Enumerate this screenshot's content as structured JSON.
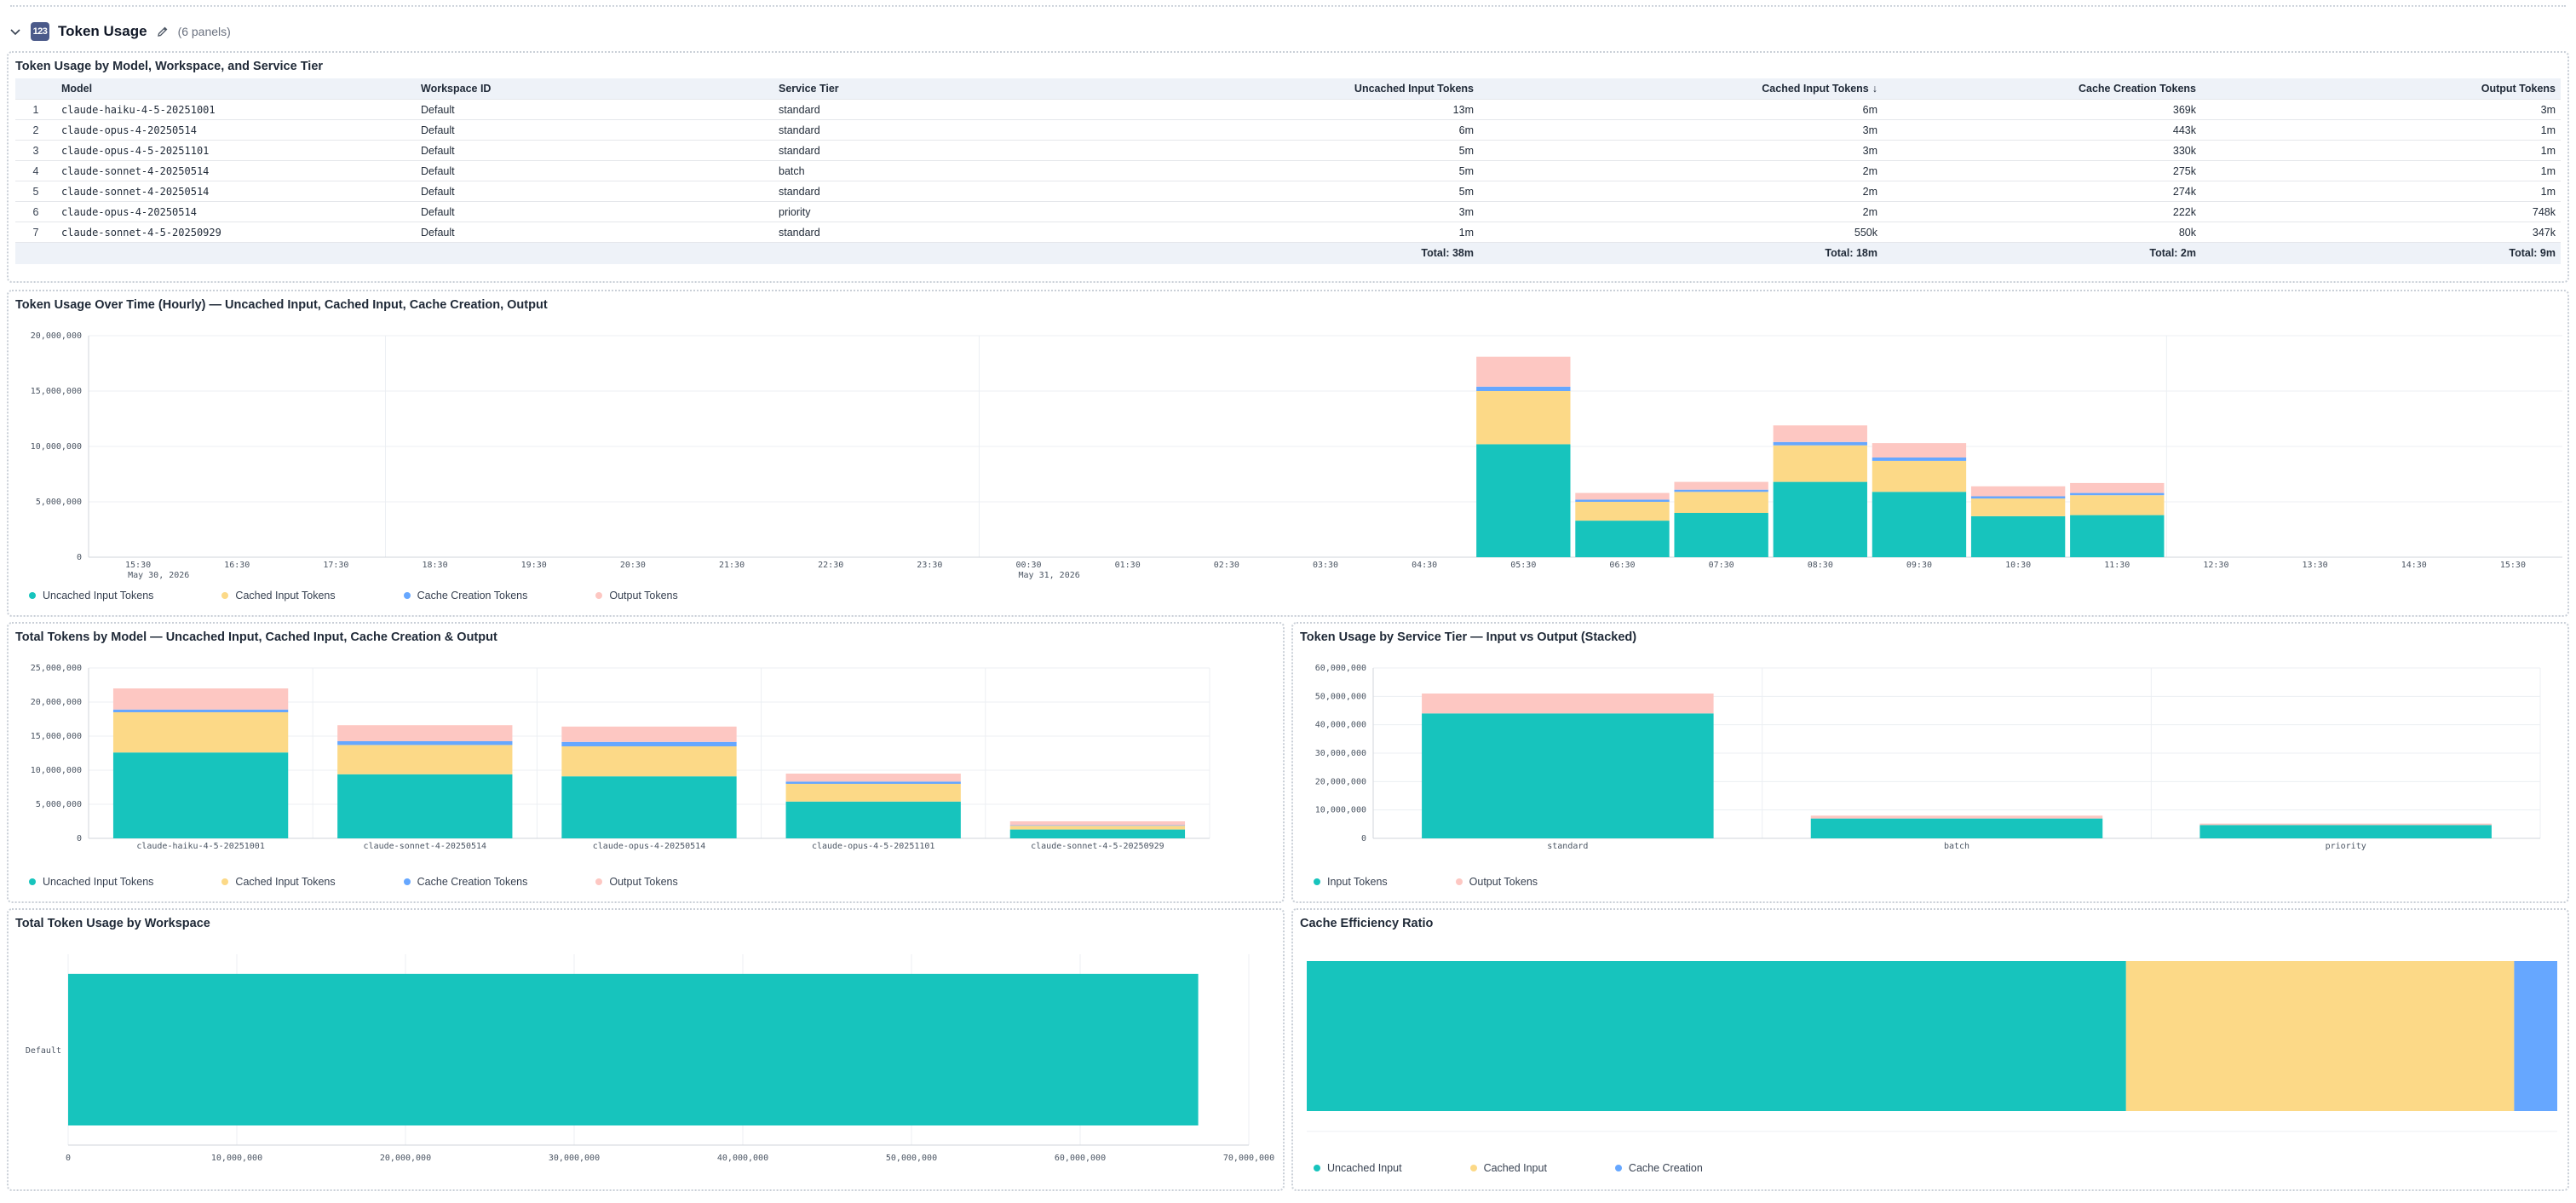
{
  "section": {
    "title": "Token Usage",
    "icon": "table-icon",
    "icon_glyph": "123",
    "panel_count": "(6 panels)"
  },
  "colors": {
    "uncached": "#17c4bd",
    "cached": "#fcd987",
    "cache_creation": "#66a7ff",
    "output": "#fdc7c2",
    "grid": "#eceff3",
    "axis_text": "#4b5563"
  },
  "table_panel": {
    "title": "Token Usage by Model, Workspace, and Service Tier",
    "headers": {
      "model": "Model",
      "workspace": "Workspace ID",
      "tier": "Service Tier",
      "uncached": "Uncached Input Tokens",
      "cached": "Cached Input Tokens",
      "cached_sort": "↓",
      "creation": "Cache Creation Tokens",
      "output": "Output Tokens"
    },
    "rows": [
      {
        "idx": "1",
        "model": "claude-haiku-4-5-20251001",
        "workspace": "Default",
        "tier": "standard",
        "uncached": "13m",
        "cached": "6m",
        "creation": "369k",
        "output": "3m"
      },
      {
        "idx": "2",
        "model": "claude-opus-4-20250514",
        "workspace": "Default",
        "tier": "standard",
        "uncached": "6m",
        "cached": "3m",
        "creation": "443k",
        "output": "1m"
      },
      {
        "idx": "3",
        "model": "claude-opus-4-5-20251101",
        "workspace": "Default",
        "tier": "standard",
        "uncached": "5m",
        "cached": "3m",
        "creation": "330k",
        "output": "1m"
      },
      {
        "idx": "4",
        "model": "claude-sonnet-4-20250514",
        "workspace": "Default",
        "tier": "batch",
        "uncached": "5m",
        "cached": "2m",
        "creation": "275k",
        "output": "1m"
      },
      {
        "idx": "5",
        "model": "claude-sonnet-4-20250514",
        "workspace": "Default",
        "tier": "standard",
        "uncached": "5m",
        "cached": "2m",
        "creation": "274k",
        "output": "1m"
      },
      {
        "idx": "6",
        "model": "claude-opus-4-20250514",
        "workspace": "Default",
        "tier": "priority",
        "uncached": "3m",
        "cached": "2m",
        "creation": "222k",
        "output": "748k"
      },
      {
        "idx": "7",
        "model": "claude-sonnet-4-5-20250929",
        "workspace": "Default",
        "tier": "standard",
        "uncached": "1m",
        "cached": "550k",
        "creation": "80k",
        "output": "347k"
      }
    ],
    "totals": {
      "uncached": "Total: 38m",
      "cached": "Total: 18m",
      "creation": "Total: 2m",
      "output": "Total: 9m"
    }
  },
  "chart_data": [
    {
      "id": "hourly",
      "type": "bar",
      "stacked": true,
      "title": "Token Usage Over Time (Hourly) — Uncached Input, Cached Input, Cache Creation, Output",
      "categories": [
        "15:30",
        "16:30",
        "17:30",
        "18:30",
        "19:30",
        "20:30",
        "21:30",
        "22:30",
        "23:30",
        "00:30",
        "01:30",
        "02:30",
        "03:30",
        "04:30",
        "05:30",
        "06:30",
        "07:30",
        "08:30",
        "09:30",
        "10:30",
        "11:30",
        "12:30",
        "13:30",
        "14:30",
        "15:30"
      ],
      "date_labels": [
        {
          "at": "15:30",
          "label": "May 30, 2026"
        },
        {
          "at": "00:30",
          "label": "May 31, 2026"
        }
      ],
      "series": [
        {
          "name": "Uncached Input Tokens",
          "color_key": "uncached",
          "values": [
            0,
            0,
            0,
            0,
            0,
            0,
            0,
            0,
            0,
            0,
            0,
            0,
            0,
            0,
            10200000,
            3300000,
            4000000,
            6800000,
            5900000,
            3700000,
            3800000,
            0,
            0,
            0,
            0
          ]
        },
        {
          "name": "Cached Input Tokens",
          "color_key": "cached",
          "values": [
            0,
            0,
            0,
            0,
            0,
            0,
            0,
            0,
            0,
            0,
            0,
            0,
            0,
            0,
            4800000,
            1700000,
            1900000,
            3300000,
            2800000,
            1600000,
            1800000,
            0,
            0,
            0,
            0
          ]
        },
        {
          "name": "Cache Creation Tokens",
          "color_key": "cache_creation",
          "values": [
            0,
            0,
            0,
            0,
            0,
            0,
            0,
            0,
            0,
            0,
            0,
            0,
            0,
            0,
            400000,
            200000,
            200000,
            300000,
            300000,
            200000,
            200000,
            0,
            0,
            0,
            0
          ]
        },
        {
          "name": "Output Tokens",
          "color_key": "output",
          "values": [
            0,
            0,
            0,
            0,
            0,
            0,
            0,
            0,
            0,
            0,
            0,
            0,
            0,
            0,
            2700000,
            600000,
            700000,
            1500000,
            1300000,
            900000,
            900000,
            0,
            0,
            0,
            0
          ]
        }
      ],
      "yticks": [
        0,
        5000000,
        10000000,
        15000000,
        20000000
      ],
      "ytick_labels": [
        "0",
        "5,000,000",
        "10,000,000",
        "15,000,000",
        "20,000,000"
      ],
      "ylim": [
        0,
        20000000
      ],
      "grid": true,
      "legend": "bottom-left"
    },
    {
      "id": "by_model",
      "type": "bar",
      "stacked": true,
      "title": "Total Tokens by Model — Uncached Input, Cached Input, Cache Creation & Output",
      "categories": [
        "claude-haiku-4-5-20251001",
        "claude-sonnet-4-20250514",
        "claude-opus-4-20250514",
        "claude-opus-4-5-20251101",
        "claude-sonnet-4-5-20250929"
      ],
      "series": [
        {
          "name": "Uncached Input Tokens",
          "color_key": "uncached",
          "values": [
            12600000,
            9400000,
            9100000,
            5400000,
            1300000
          ]
        },
        {
          "name": "Cached Input Tokens",
          "color_key": "cached",
          "values": [
            5900000,
            4300000,
            4400000,
            2600000,
            550000
          ]
        },
        {
          "name": "Cache Creation Tokens",
          "color_key": "cache_creation",
          "values": [
            400000,
            550000,
            650000,
            330000,
            80000
          ]
        },
        {
          "name": "Output Tokens",
          "color_key": "output",
          "values": [
            3100000,
            2350000,
            2250000,
            1170000,
            570000
          ]
        }
      ],
      "yticks": [
        0,
        5000000,
        10000000,
        15000000,
        20000000,
        25000000
      ],
      "ytick_labels": [
        "0",
        "5,000,000",
        "10,000,000",
        "15,000,000",
        "20,000,000",
        "25,000,000"
      ],
      "ylim": [
        0,
        25000000
      ],
      "grid": true,
      "legend": "bottom-left"
    },
    {
      "id": "by_tier",
      "type": "bar",
      "stacked": true,
      "title": "Token Usage by Service Tier — Input vs Output (Stacked)",
      "categories": [
        "standard",
        "batch",
        "priority"
      ],
      "series": [
        {
          "name": "Input Tokens",
          "color_key": "uncached",
          "values": [
            44000000,
            7000000,
            4700000
          ]
        },
        {
          "name": "Output Tokens",
          "color_key": "output",
          "values": [
            7000000,
            1000000,
            500000
          ]
        }
      ],
      "yticks": [
        0,
        10000000,
        20000000,
        30000000,
        40000000,
        50000000,
        60000000
      ],
      "ytick_labels": [
        "0",
        "10,000,000",
        "20,000,000",
        "30,000,000",
        "40,000,000",
        "50,000,000",
        "60,000,000"
      ],
      "ylim": [
        0,
        60000000
      ],
      "grid": true,
      "legend": "bottom-left"
    },
    {
      "id": "by_workspace",
      "type": "bar",
      "orientation": "horizontal",
      "title": "Total Token Usage by Workspace",
      "categories": [
        "Default"
      ],
      "series": [
        {
          "name": "",
          "color_key": "uncached",
          "values": [
            67000000
          ]
        }
      ],
      "xticks": [
        0,
        10000000,
        20000000,
        30000000,
        40000000,
        50000000,
        60000000,
        70000000
      ],
      "xtick_labels": [
        "0",
        "10,000,000",
        "20,000,000",
        "30,000,000",
        "40,000,000",
        "50,000,000",
        "60,000,000",
        "70,000,000"
      ],
      "xlim": [
        0,
        70000000
      ],
      "grid": true
    },
    {
      "id": "cache_efficiency",
      "type": "bar",
      "orientation": "horizontal",
      "stacked": true,
      "title": "Cache Efficiency Ratio",
      "series": [
        {
          "name": "Uncached Input",
          "color_key": "uncached",
          "values": [
            38
          ]
        },
        {
          "name": "Cached Input",
          "color_key": "cached",
          "values": [
            18
          ]
        },
        {
          "name": "Cache Creation",
          "color_key": "cache_creation",
          "values": [
            2
          ]
        }
      ],
      "legend": "bottom-left"
    }
  ]
}
